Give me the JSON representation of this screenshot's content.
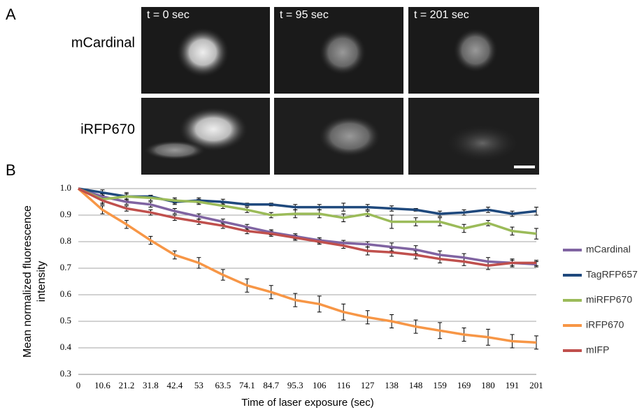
{
  "panel_a": {
    "label": "A",
    "rows": [
      "mCardinal",
      "iRFP670"
    ],
    "times": [
      "t = 0 sec",
      "t = 95 sec",
      "t = 201 sec"
    ]
  },
  "chart_data": {
    "type": "line",
    "panel_label": "B",
    "xlabel": "Time of laser exposure (sec)",
    "ylabel": [
      "Mean normalized fluorescence",
      "intensity"
    ],
    "categories": [
      0,
      10.6,
      21.2,
      31.8,
      42.4,
      53,
      63.5,
      74.1,
      84.7,
      95.3,
      106,
      116,
      127,
      138,
      148,
      159,
      169,
      180,
      191,
      201
    ],
    "ylim": [
      0.3,
      1.0
    ],
    "yticks": [
      0.3,
      0.4,
      0.5,
      0.6,
      0.7,
      0.8,
      0.9,
      {
        "value": 1.0,
        "label": "1.0"
      }
    ],
    "grid": true,
    "legend": "right",
    "series": [
      {
        "name": "mCardinal",
        "color": "#8064a2",
        "values": [
          1,
          0.97,
          0.95,
          0.94,
          0.915,
          0.895,
          0.875,
          0.855,
          0.835,
          0.82,
          0.805,
          0.795,
          0.79,
          0.78,
          0.77,
          0.75,
          0.74,
          0.725,
          0.72,
          0.715
        ],
        "errors": [
          0,
          0.01,
          0.01,
          0.01,
          0.01,
          0.01,
          0.01,
          0.01,
          0.01,
          0.01,
          0.01,
          0.01,
          0.01,
          0.015,
          0.015,
          0.015,
          0.015,
          0.015,
          0.015,
          0.01
        ]
      },
      {
        "name": "TagRFP657",
        "color": "#1f497d",
        "values": [
          1,
          0.985,
          0.97,
          0.97,
          0.95,
          0.955,
          0.95,
          0.94,
          0.94,
          0.93,
          0.93,
          0.93,
          0.93,
          0.925,
          0.92,
          0.905,
          0.91,
          0.92,
          0.905,
          0.915
        ],
        "errors": [
          0,
          0.01,
          0.01,
          0.005,
          0.01,
          0.01,
          0.01,
          0.005,
          0.005,
          0.01,
          0.01,
          0.015,
          0.01,
          0.01,
          0.005,
          0.01,
          0.01,
          0.01,
          0.01,
          0.015
        ]
      },
      {
        "name": "miRFP670",
        "color": "#9bbb59",
        "values": [
          1,
          0.96,
          0.97,
          0.965,
          0.955,
          0.95,
          0.935,
          0.92,
          0.9,
          0.905,
          0.905,
          0.89,
          0.905,
          0.875,
          0.875,
          0.875,
          0.85,
          0.87,
          0.84,
          0.83
        ],
        "errors": [
          0,
          0.02,
          0.015,
          0.01,
          0.01,
          0.01,
          0.01,
          0.01,
          0.01,
          0.015,
          0.015,
          0.015,
          0.01,
          0.025,
          0.015,
          0.015,
          0.015,
          0.01,
          0.015,
          0.02
        ]
      },
      {
        "name": "iRFP670",
        "color": "#f79646",
        "values": [
          1,
          0.92,
          0.865,
          0.805,
          0.75,
          0.72,
          0.675,
          0.635,
          0.61,
          0.58,
          0.565,
          0.535,
          0.515,
          0.5,
          0.48,
          0.465,
          0.45,
          0.44,
          0.425,
          0.42
        ],
        "errors": [
          0,
          0.015,
          0.015,
          0.015,
          0.015,
          0.02,
          0.02,
          0.025,
          0.025,
          0.025,
          0.03,
          0.03,
          0.025,
          0.025,
          0.025,
          0.03,
          0.025,
          0.03,
          0.025,
          0.025
        ]
      },
      {
        "name": "mIFP",
        "color": "#c0504d",
        "values": [
          1,
          0.955,
          0.925,
          0.91,
          0.89,
          0.875,
          0.86,
          0.84,
          0.83,
          0.815,
          0.8,
          0.785,
          0.765,
          0.76,
          0.75,
          0.735,
          0.725,
          0.71,
          0.72,
          0.72
        ],
        "errors": [
          0,
          0.01,
          0.01,
          0.01,
          0.01,
          0.01,
          0.01,
          0.01,
          0.01,
          0.01,
          0.01,
          0.01,
          0.015,
          0.015,
          0.015,
          0.015,
          0.015,
          0.015,
          0.01,
          0.01
        ]
      }
    ]
  }
}
